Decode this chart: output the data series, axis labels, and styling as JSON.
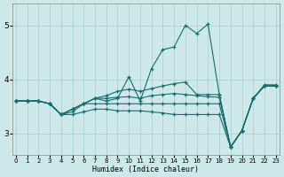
{
  "xlabel": "Humidex (Indice chaleur)",
  "background_color": "#cce8e8",
  "grid_color": "#aacfcf",
  "line_color": "#1a6b6b",
  "xlim": [
    0,
    23
  ],
  "ylim": [
    2.6,
    5.4
  ],
  "yticks": [
    3,
    4,
    5
  ],
  "lines": [
    [
      3.6,
      3.6,
      3.6,
      3.55,
      3.35,
      3.45,
      3.55,
      3.65,
      3.6,
      3.65,
      4.05,
      3.6,
      4.2,
      4.55,
      4.6,
      5.0,
      4.85,
      5.02,
      3.72,
      2.75,
      3.05,
      3.65,
      3.9,
      3.9
    ],
    [
      3.6,
      3.6,
      3.6,
      3.55,
      3.35,
      3.45,
      3.55,
      3.65,
      3.7,
      3.78,
      3.82,
      3.78,
      3.83,
      3.88,
      3.92,
      3.95,
      3.72,
      3.72,
      3.72,
      2.75,
      3.05,
      3.65,
      3.88,
      3.88
    ],
    [
      3.6,
      3.6,
      3.6,
      3.55,
      3.35,
      3.45,
      3.55,
      3.65,
      3.65,
      3.67,
      3.68,
      3.65,
      3.7,
      3.72,
      3.74,
      3.72,
      3.7,
      3.68,
      3.67,
      2.75,
      3.05,
      3.65,
      3.88,
      3.88
    ],
    [
      3.6,
      3.6,
      3.6,
      3.55,
      3.35,
      3.4,
      3.55,
      3.55,
      3.55,
      3.55,
      3.55,
      3.55,
      3.55,
      3.55,
      3.55,
      3.55,
      3.55,
      3.55,
      3.55,
      2.75,
      3.05,
      3.65,
      3.88,
      3.88
    ],
    [
      3.6,
      3.6,
      3.6,
      3.55,
      3.35,
      3.35,
      3.4,
      3.45,
      3.45,
      3.42,
      3.42,
      3.42,
      3.4,
      3.38,
      3.35,
      3.35,
      3.35,
      3.35,
      3.35,
      2.75,
      3.05,
      3.65,
      3.88,
      3.88
    ]
  ]
}
